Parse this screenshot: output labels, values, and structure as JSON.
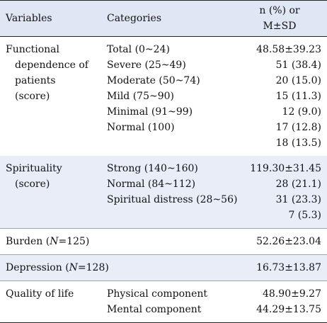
{
  "header": {
    "variables": "Variables",
    "categories": "Categories",
    "stat_line1": "n (%) or",
    "stat_line2": "M±SD"
  },
  "functional": {
    "label_lines": [
      "Functional",
      "dependence of",
      "patients",
      "(score)"
    ],
    "categories": [
      "Total (0~24)",
      "Severe (25~49)",
      "Moderate (50~74)",
      "Mild (75~90)",
      "Minimal (91~99)",
      "Normal (100)"
    ],
    "values": [
      "48.58±39.23",
      "51 (38.4)",
      "20 (15.0)",
      "15 (11.3)",
      "12 (9.0)",
      "17 (12.8)",
      "18 (13.5)"
    ]
  },
  "spirituality": {
    "label_lines": [
      "Spirituality",
      "(score)"
    ],
    "categories": [
      "Strong (140~160)",
      "Normal (84~112)",
      "Spiritual distress (28~56)"
    ],
    "values": [
      "119.30±31.45",
      "28 (21.1)",
      "31 (23.3)",
      "7 (5.3)"
    ]
  },
  "burden": {
    "label_prefix": "Burden (",
    "label_n": "N",
    "label_suffix": "=125)",
    "value": "52.26±23.04"
  },
  "depression": {
    "label_prefix": "Depression (",
    "label_n": "N",
    "label_suffix": "=128)",
    "value": "16.73±13.87"
  },
  "quality": {
    "label": "Quality of life",
    "categories": [
      "Physical component",
      "Mental component"
    ],
    "values": [
      "48.90±9.27",
      "44.29±13.75"
    ]
  }
}
